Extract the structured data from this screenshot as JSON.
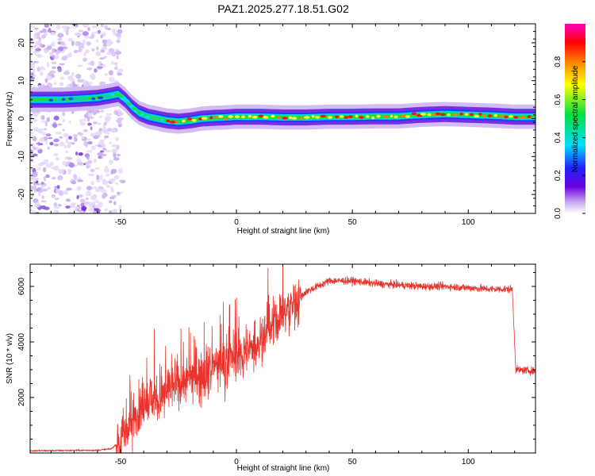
{
  "title": "PAZ1.2025.277.18.51.G02",
  "chart_data": [
    {
      "type": "heatmap",
      "xlabel": "Height of straight line (km)",
      "ylabel": "Frequency (Hz)",
      "xlim": [
        -89,
        129
      ],
      "ylim": [
        -25,
        25
      ],
      "xticks": [
        -50,
        0,
        50,
        100
      ],
      "yticks": [
        -20,
        -10,
        0,
        10,
        20
      ],
      "ridge": {
        "x": [
          -85,
          -75,
          -68,
          -60,
          -55,
          -51,
          -48,
          -45,
          -42,
          -38,
          -34,
          -30,
          -25,
          -20,
          -15,
          -10,
          -5,
          0,
          10,
          20,
          30,
          40,
          50,
          60,
          70,
          80,
          90,
          100,
          110,
          120,
          129
        ],
        "y": [
          5.0,
          5.0,
          5.2,
          5.5,
          6.0,
          6.5,
          5.0,
          3.0,
          1.5,
          0.5,
          0.0,
          -0.5,
          -0.8,
          -0.5,
          0.0,
          0.2,
          0.3,
          0.5,
          0.5,
          0.3,
          0.3,
          0.5,
          0.5,
          0.6,
          0.6,
          1.0,
          1.2,
          1.0,
          0.8,
          0.5,
          0.5
        ]
      },
      "colorbar": {
        "label": "Normalized spectral amplitude",
        "ticks": [
          0.0,
          0.2,
          0.4,
          0.6,
          0.8
        ],
        "range": [
          0,
          1
        ]
      }
    },
    {
      "type": "line",
      "xlabel": "Height of straight line (km)",
      "ylabel": "SNR (10 * v/v)",
      "xlim": [
        -89,
        129
      ],
      "ylim": [
        0,
        6800
      ],
      "xticks": [
        -50,
        0,
        50,
        100
      ],
      "yticks": [
        2000,
        4000,
        6000
      ],
      "color": "#e8342c",
      "envelope": {
        "x": [
          -89,
          -60,
          -54,
          -50,
          -46,
          -42,
          -38,
          -34,
          -30,
          -25,
          -20,
          -15,
          -10,
          -5,
          0,
          5,
          10,
          15,
          20,
          25,
          30,
          40,
          50,
          60,
          70,
          80,
          90,
          100,
          110,
          119,
          120.5,
          129
        ],
        "y": [
          80,
          100,
          150,
          450,
          900,
          1500,
          2000,
          1900,
          2200,
          2500,
          2700,
          2900,
          3100,
          3300,
          3500,
          3700,
          4000,
          4500,
          5000,
          5400,
          5800,
          6200,
          6200,
          6100,
          6050,
          6000,
          6000,
          5950,
          5900,
          5900,
          3000,
          2950
        ]
      }
    }
  ]
}
